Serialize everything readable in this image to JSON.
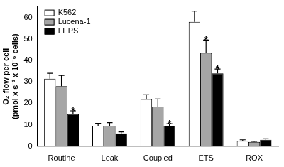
{
  "chart_data": {
    "type": "bar",
    "categories": [
      "Routine",
      "Leak",
      "Coupled",
      "ETS",
      "ROX"
    ],
    "y_label": [
      "O₂ flow per cell",
      "(pmol x s⁻¹ x 10⁻⁶ cells)"
    ],
    "series": [
      {
        "name": "K562",
        "color": "#ffffff",
        "values": [
          31.5,
          9.5,
          22,
          58,
          2.5
        ],
        "errors": [
          2.5,
          1.2,
          2,
          5,
          0.5
        ],
        "annotations": [
          null,
          null,
          null,
          null,
          null
        ]
      },
      {
        "name": "Lucena-1",
        "color": "#a6a6a6",
        "values": [
          28,
          9.5,
          18.5,
          43.5,
          2
        ],
        "errors": [
          5,
          1.5,
          3.5,
          6,
          0.3
        ],
        "annotations": [
          null,
          null,
          null,
          "*",
          null
        ]
      },
      {
        "name": "FEPS",
        "color": "#000000",
        "values": [
          15,
          6,
          9.5,
          34,
          3
        ],
        "errors": [
          1.5,
          0.7,
          1,
          2,
          0.5
        ],
        "annotations": [
          "*",
          null,
          "*",
          "*",
          null
        ]
      }
    ],
    "ylim": [
      0,
      65
    ],
    "yticks": [
      0,
      10,
      20,
      30,
      40,
      50,
      60
    ],
    "grid": false,
    "legend": "upper left"
  }
}
